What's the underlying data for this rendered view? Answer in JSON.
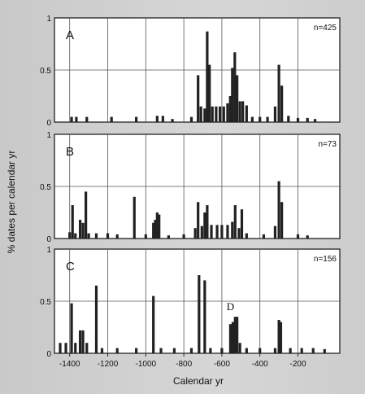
{
  "chart_data": {
    "type": "bar",
    "xlabel": "Calendar yr",
    "ylabel": "% dates per calendar yr",
    "xlim": [
      -1480,
      20
    ],
    "x_ticks": [
      -1400,
      -1200,
      -1000,
      -800,
      -600,
      -400,
      -200
    ],
    "ylim": [
      0,
      1
    ],
    "y_ticks": [
      0,
      0.5,
      1
    ],
    "grid": true,
    "panels": [
      {
        "letter": "A",
        "n_label": "n=425",
        "bars": [
          {
            "x": -1390,
            "y": 0.05
          },
          {
            "x": -1365,
            "y": 0.05
          },
          {
            "x": -1310,
            "y": 0.05
          },
          {
            "x": -1180,
            "y": 0.05
          },
          {
            "x": -1050,
            "y": 0.05
          },
          {
            "x": -940,
            "y": 0.06
          },
          {
            "x": -910,
            "y": 0.06
          },
          {
            "x": -860,
            "y": 0.03
          },
          {
            "x": -760,
            "y": 0.05
          },
          {
            "x": -725,
            "y": 0.45
          },
          {
            "x": -710,
            "y": 0.15
          },
          {
            "x": -690,
            "y": 0.13
          },
          {
            "x": -677,
            "y": 0.87
          },
          {
            "x": -665,
            "y": 0.55
          },
          {
            "x": -650,
            "y": 0.15
          },
          {
            "x": -630,
            "y": 0.15
          },
          {
            "x": -610,
            "y": 0.15
          },
          {
            "x": -590,
            "y": 0.15
          },
          {
            "x": -570,
            "y": 0.18
          },
          {
            "x": -556,
            "y": 0.25
          },
          {
            "x": -545,
            "y": 0.52
          },
          {
            "x": -532,
            "y": 0.67
          },
          {
            "x": -520,
            "y": 0.45
          },
          {
            "x": -505,
            "y": 0.2
          },
          {
            "x": -490,
            "y": 0.2
          },
          {
            "x": -470,
            "y": 0.16
          },
          {
            "x": -440,
            "y": 0.05
          },
          {
            "x": -400,
            "y": 0.05
          },
          {
            "x": -360,
            "y": 0.05
          },
          {
            "x": -320,
            "y": 0.15
          },
          {
            "x": -300,
            "y": 0.55
          },
          {
            "x": -285,
            "y": 0.35
          },
          {
            "x": -250,
            "y": 0.06
          },
          {
            "x": -200,
            "y": 0.04
          },
          {
            "x": -150,
            "y": 0.04
          },
          {
            "x": -110,
            "y": 0.03
          }
        ]
      },
      {
        "letter": "B",
        "n_label": "n=73",
        "bars": [
          {
            "x": -1400,
            "y": 0.06
          },
          {
            "x": -1385,
            "y": 0.32
          },
          {
            "x": -1370,
            "y": 0.05
          },
          {
            "x": -1345,
            "y": 0.18
          },
          {
            "x": -1330,
            "y": 0.15
          },
          {
            "x": -1315,
            "y": 0.45
          },
          {
            "x": -1300,
            "y": 0.05
          },
          {
            "x": -1260,
            "y": 0.05
          },
          {
            "x": -1200,
            "y": 0.05
          },
          {
            "x": -1150,
            "y": 0.04
          },
          {
            "x": -1060,
            "y": 0.4
          },
          {
            "x": -1000,
            "y": 0.04
          },
          {
            "x": -960,
            "y": 0.15
          },
          {
            "x": -950,
            "y": 0.18
          },
          {
            "x": -940,
            "y": 0.25
          },
          {
            "x": -930,
            "y": 0.23
          },
          {
            "x": -880,
            "y": 0.03
          },
          {
            "x": -800,
            "y": 0.04
          },
          {
            "x": -740,
            "y": 0.1
          },
          {
            "x": -725,
            "y": 0.35
          },
          {
            "x": -705,
            "y": 0.12
          },
          {
            "x": -690,
            "y": 0.25
          },
          {
            "x": -677,
            "y": 0.32
          },
          {
            "x": -655,
            "y": 0.13
          },
          {
            "x": -625,
            "y": 0.13
          },
          {
            "x": -600,
            "y": 0.13
          },
          {
            "x": -570,
            "y": 0.13
          },
          {
            "x": -545,
            "y": 0.16
          },
          {
            "x": -530,
            "y": 0.32
          },
          {
            "x": -510,
            "y": 0.1
          },
          {
            "x": -495,
            "y": 0.28
          },
          {
            "x": -470,
            "y": 0.05
          },
          {
            "x": -380,
            "y": 0.04
          },
          {
            "x": -320,
            "y": 0.12
          },
          {
            "x": -300,
            "y": 0.55
          },
          {
            "x": -285,
            "y": 0.35
          },
          {
            "x": -200,
            "y": 0.04
          },
          {
            "x": -150,
            "y": 0.03
          }
        ]
      },
      {
        "letter": "C",
        "n_label": "n=156",
        "annotation": {
          "text": "D",
          "x": -555,
          "y": 0.4
        },
        "bars": [
          {
            "x": -1450,
            "y": 0.1
          },
          {
            "x": -1420,
            "y": 0.1
          },
          {
            "x": -1390,
            "y": 0.48
          },
          {
            "x": -1370,
            "y": 0.1
          },
          {
            "x": -1345,
            "y": 0.22
          },
          {
            "x": -1330,
            "y": 0.22
          },
          {
            "x": -1310,
            "y": 0.1
          },
          {
            "x": -1260,
            "y": 0.65
          },
          {
            "x": -1230,
            "y": 0.05
          },
          {
            "x": -1150,
            "y": 0.05
          },
          {
            "x": -1050,
            "y": 0.05
          },
          {
            "x": -960,
            "y": 0.55
          },
          {
            "x": -920,
            "y": 0.05
          },
          {
            "x": -850,
            "y": 0.05
          },
          {
            "x": -760,
            "y": 0.05
          },
          {
            "x": -720,
            "y": 0.75
          },
          {
            "x": -690,
            "y": 0.7
          },
          {
            "x": -660,
            "y": 0.05
          },
          {
            "x": -600,
            "y": 0.05
          },
          {
            "x": -555,
            "y": 0.28
          },
          {
            "x": -542,
            "y": 0.3
          },
          {
            "x": -530,
            "y": 0.35
          },
          {
            "x": -520,
            "y": 0.35
          },
          {
            "x": -505,
            "y": 0.1
          },
          {
            "x": -470,
            "y": 0.05
          },
          {
            "x": -400,
            "y": 0.05
          },
          {
            "x": -320,
            "y": 0.05
          },
          {
            "x": -300,
            "y": 0.32
          },
          {
            "x": -290,
            "y": 0.3
          },
          {
            "x": -240,
            "y": 0.05
          },
          {
            "x": -180,
            "y": 0.05
          },
          {
            "x": -120,
            "y": 0.05
          },
          {
            "x": -60,
            "y": 0.04
          }
        ]
      }
    ]
  }
}
